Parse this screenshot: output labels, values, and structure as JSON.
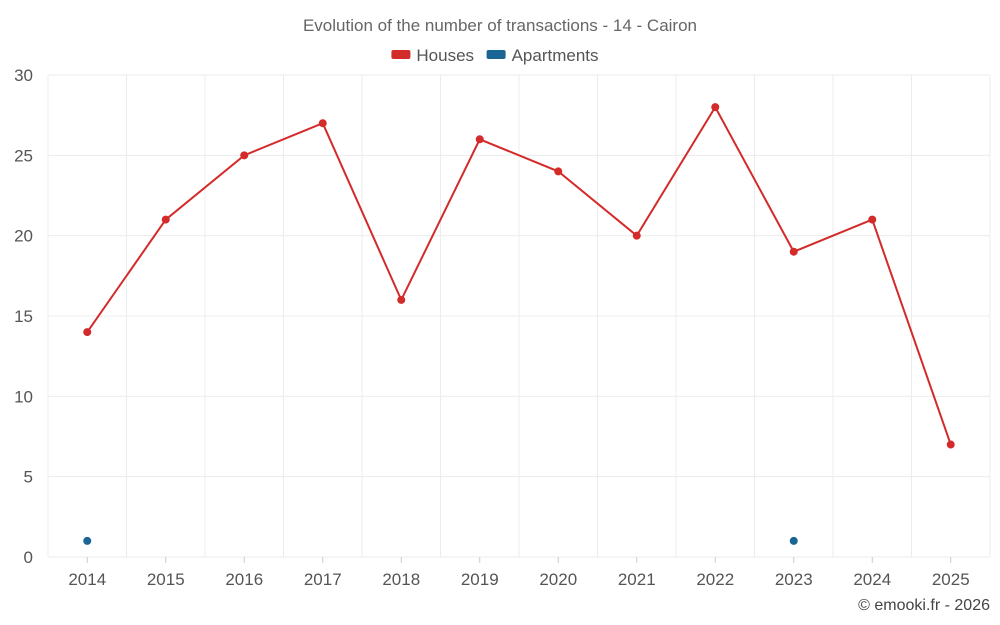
{
  "chart_data": {
    "type": "line",
    "title": "Evolution of the number of transactions - 14 - Cairon",
    "x": [
      2014,
      2015,
      2016,
      2017,
      2018,
      2019,
      2020,
      2021,
      2022,
      2023,
      2024,
      2025
    ],
    "series": [
      {
        "name": "Houses",
        "color": "#d32a2a",
        "connected": true,
        "values": [
          14,
          21,
          25,
          27,
          16,
          26,
          24,
          20,
          28,
          19,
          21,
          7
        ]
      },
      {
        "name": "Apartments",
        "color": "#1a6496",
        "connected": false,
        "values": [
          1,
          null,
          null,
          null,
          null,
          null,
          null,
          null,
          null,
          1,
          null,
          null
        ]
      }
    ],
    "ylim": [
      0,
      30
    ],
    "yticks": [
      0,
      5,
      10,
      15,
      20,
      25,
      30
    ],
    "grid": true,
    "legend_position": "top-center"
  },
  "credit": "© emooki.fr - 2026"
}
